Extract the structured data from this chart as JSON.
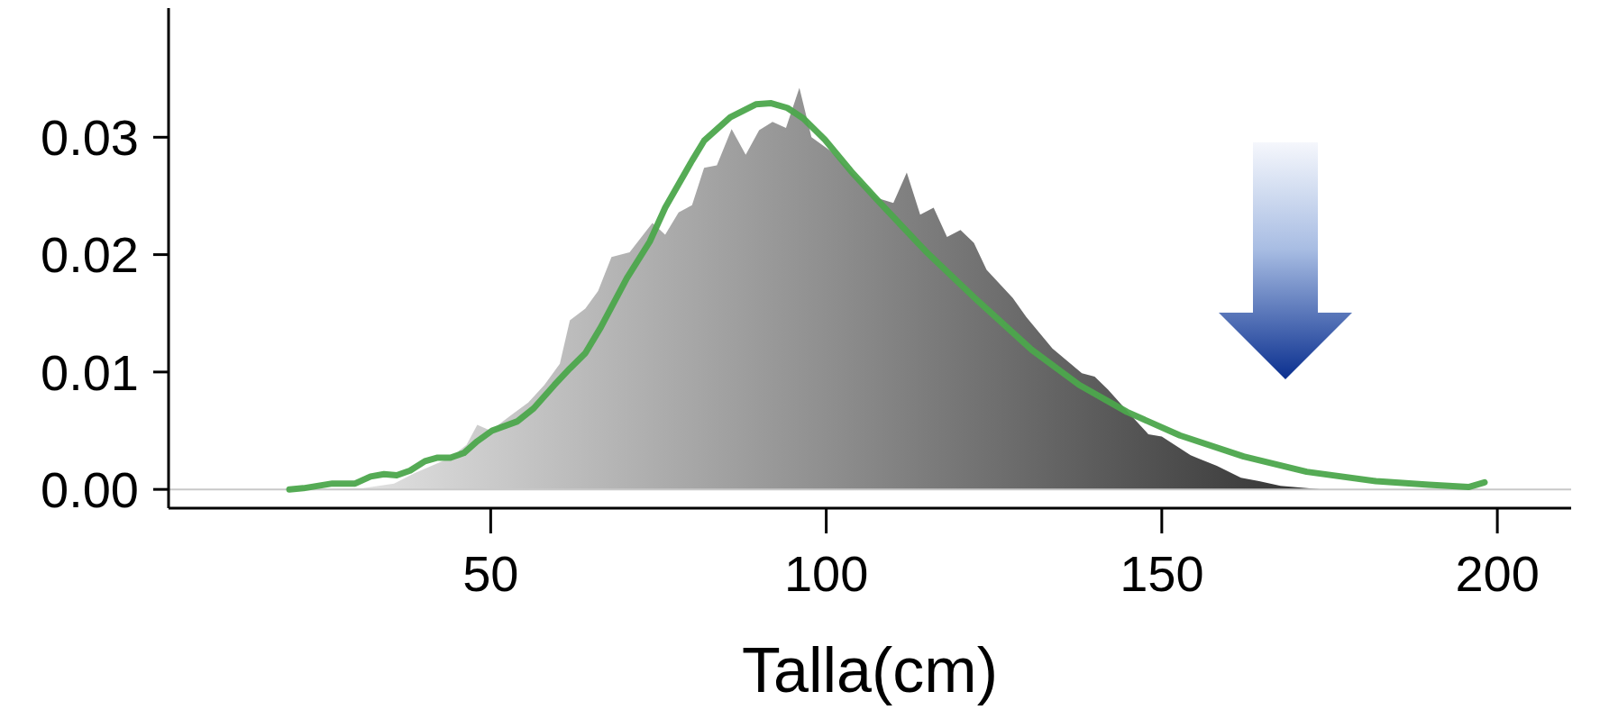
{
  "chart_data": {
    "type": "area",
    "xlabel": "Talla(cm)",
    "xlim": [
      2,
      211
    ],
    "xticks": [
      50,
      100,
      150,
      200
    ],
    "ylim": [
      -0.0016,
      0.041
    ],
    "yticks": [
      {
        "value": 0,
        "label": "0.00"
      },
      {
        "value": 0.01,
        "label": "0.01"
      },
      {
        "value": 0.02,
        "label": "0.02"
      },
      {
        "value": 0.03,
        "label": "0.03"
      }
    ],
    "grid": false,
    "legend": false,
    "ref_lines": [
      {
        "axis": "y",
        "value": 0,
        "color": "#c8c8c8"
      }
    ],
    "series": [
      {
        "color": "#8c8c8c",
        "x": [
          20,
          31,
          35.6,
          38.7,
          44,
          46.4,
          48,
          50,
          53,
          55.6,
          58,
          60.3,
          61.8,
          64.1,
          66,
          68,
          70.7,
          74.1,
          76,
          78,
          80,
          81.8,
          83.7,
          85.9,
          88,
          90,
          92,
          94,
          96,
          97.8,
          100.5,
          107.7,
          110,
          112,
          114,
          116,
          118,
          120,
          122,
          123.9,
          127.8,
          129.8,
          133.7,
          138.1,
          140,
          142,
          145.6,
          148,
          150,
          154.3,
          158.2,
          161.8,
          164.5,
          167.7,
          174,
          185
        ],
        "values": [
          0,
          0.0001,
          0.0005,
          0.0014,
          0.0027,
          0.0038,
          0.0055,
          0.005,
          0.0063,
          0.0074,
          0.0089,
          0.0107,
          0.0144,
          0.0154,
          0.0169,
          0.0198,
          0.0202,
          0.0227,
          0.0217,
          0.0236,
          0.0242,
          0.0274,
          0.0276,
          0.0307,
          0.0285,
          0.0306,
          0.0313,
          0.0308,
          0.0342,
          0.03,
          0.0289,
          0.0248,
          0.0244,
          0.027,
          0.0234,
          0.024,
          0.0215,
          0.0221,
          0.021,
          0.0187,
          0.0163,
          0.0147,
          0.012,
          0.0099,
          0.0096,
          0.0085,
          0.0062,
          0.0047,
          0.0045,
          0.0029,
          0.002,
          0.001,
          0.0007,
          0.0003,
          0,
          0
        ]
      },
      {
        "type": "line",
        "color": "#4ca64c",
        "x": [
          20,
          22.1,
          26.4,
          29.8,
          32.1,
          34.1,
          36,
          38,
          40.2,
          42.1,
          44,
          46,
          48,
          50.2,
          54,
          56.4,
          59.5,
          61.8,
          64.1,
          66.4,
          70.3,
          73.7,
          76,
          80,
          81.8,
          85.7,
          89.5,
          91.8,
          94.2,
          96.6,
          99.8,
          103.7,
          107.7,
          114.8,
          122.7,
          130.6,
          137.7,
          144.8,
          152.7,
          162.2,
          171.6,
          181.9,
          189.8,
          195.7,
          198.1
        ],
        "values": [
          0,
          0.0001,
          0.0005,
          0.0005,
          0.0011,
          0.0013,
          0.0012,
          0.0016,
          0.0024,
          0.0027,
          0.0027,
          0.0031,
          0.0041,
          0.005,
          0.0058,
          0.0069,
          0.0089,
          0.0103,
          0.0116,
          0.0138,
          0.018,
          0.0211,
          0.024,
          0.028,
          0.0297,
          0.0317,
          0.0328,
          0.0329,
          0.0325,
          0.0316,
          0.0298,
          0.0271,
          0.0246,
          0.0203,
          0.016,
          0.0119,
          0.0089,
          0.0066,
          0.0046,
          0.0028,
          0.0015,
          0.0007,
          0.0004,
          0.0002,
          0.0006
        ]
      }
    ]
  }
}
